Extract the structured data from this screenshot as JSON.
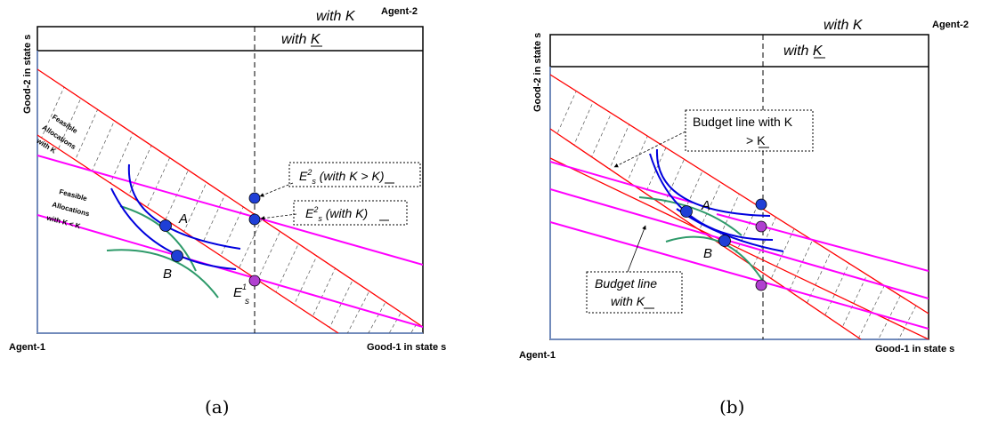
{
  "panel_a": {
    "caption": "(a)",
    "top_label_1": "with K",
    "top_label_2": "with K",
    "agent_top": "Agent-2",
    "agent_bottom": "Agent-1",
    "y_axis": "Good-2 in state s",
    "x_axis": "Good-1 in state s",
    "feasible_k": [
      "Feasible",
      "Allocations",
      "with K"
    ],
    "feasible_under_k": [
      "Feasible",
      "Allocations",
      "with K < K"
    ],
    "point_a": "A",
    "point_b": "B",
    "e1_label": "E",
    "e1_sup": "1",
    "e1_sub": "s",
    "box1_main": "E",
    "box1_sup": "2",
    "box1_sub": "s",
    "box1_rest": " (with K > K)",
    "box2_main": "E",
    "box2_sup": "2",
    "box2_sub": "s",
    "box2_rest": " (with K)"
  },
  "panel_b": {
    "caption": "(b)",
    "top_label_1": "with K",
    "top_label_2": "with K",
    "agent_top": "Agent-2",
    "agent_bottom": "Agent-1",
    "y_axis": "Good-2 in state s",
    "x_axis": "Good-1 in state s",
    "point_a": "A",
    "point_b": "B",
    "box1_line1": "Budget line with K",
    "box1_line2": "> K",
    "box2_line1": "Budget line",
    "box2_line2": "with K"
  },
  "colors": {
    "red": "#ff0000",
    "magenta": "#ff00ff",
    "blue": "#0000dd",
    "green": "#2e9a6a",
    "point_fill": "#1f3fd6",
    "axis": "#6f8fcf"
  }
}
